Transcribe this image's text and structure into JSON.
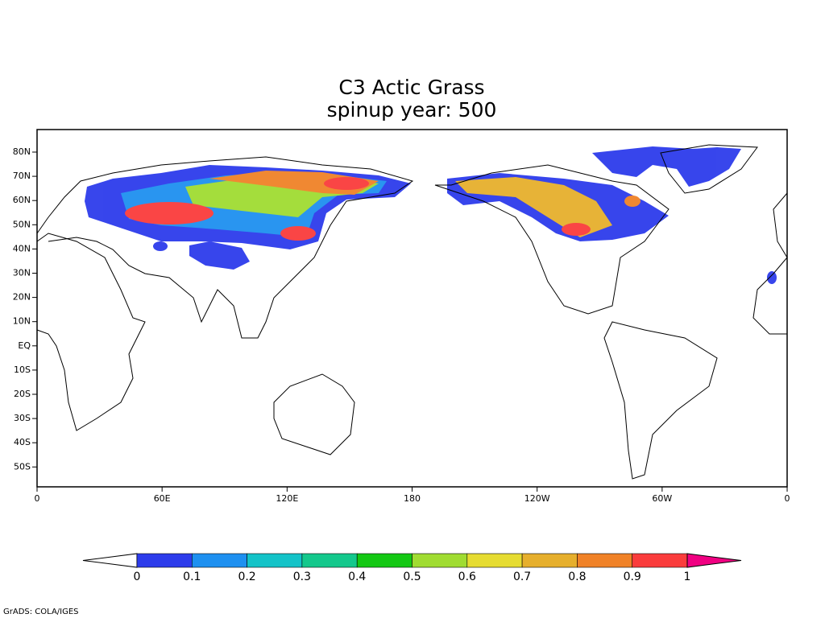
{
  "title": [
    "C3 Actic Grass",
    "spinup year: 500"
  ],
  "map": {
    "lat_labels": [
      "80N",
      "70N",
      "60N",
      "50N",
      "40N",
      "30N",
      "20N",
      "10N",
      "EQ",
      "10S",
      "20S",
      "30S",
      "40S",
      "50S"
    ],
    "lon_labels": [
      "0",
      "60E",
      "120E",
      "180",
      "120W",
      "60W",
      "0"
    ]
  },
  "colorbar": {
    "levels": [
      0,
      0.1,
      0.2,
      0.3,
      0.4,
      0.5,
      0.6,
      0.7,
      0.8,
      0.9,
      1
    ],
    "colors": [
      "#ffffff",
      "#2d3ceb",
      "#1e90f0",
      "#14c3c8",
      "#14c88c",
      "#14c814",
      "#a0dc32",
      "#e6dc32",
      "#e6af2d",
      "#f08228",
      "#fa3c3c",
      "#f00082"
    ]
  },
  "footer": "GrADS: COLA/IGES"
}
